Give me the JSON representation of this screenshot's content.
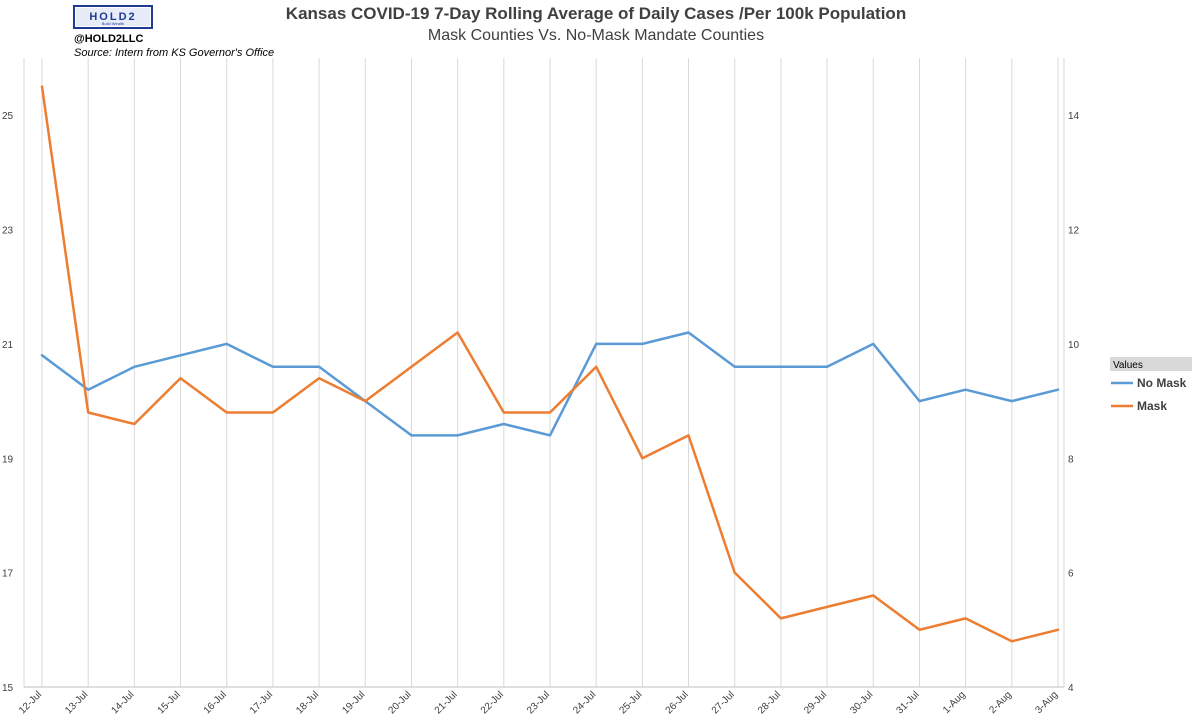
{
  "brand": {
    "logo_text": "HOLD2",
    "logo_subtext": "Build Wealth",
    "handle": "@HOLD2LLC",
    "source": "Source: Intern from KS Governor's Office"
  },
  "chart_data": {
    "type": "line",
    "title": "Kansas COVID-19 7-Day Rolling Average of Daily Cases /Per 100k Population",
    "subtitle": "Mask Counties Vs. No-Mask Mandate Counties",
    "categories": [
      "12-Jul",
      "13-Jul",
      "14-Jul",
      "15-Jul",
      "16-Jul",
      "17-Jul",
      "18-Jul",
      "19-Jul",
      "20-Jul",
      "21-Jul",
      "22-Jul",
      "23-Jul",
      "24-Jul",
      "25-Jul",
      "26-Jul",
      "27-Jul",
      "28-Jul",
      "29-Jul",
      "30-Jul",
      "31-Jul",
      "1-Aug",
      "2-Aug",
      "3-Aug"
    ],
    "y_left": {
      "min": 15,
      "max": 26,
      "ticks": [
        15,
        17,
        19,
        21,
        23,
        25
      ]
    },
    "y_right": {
      "min": 4,
      "max": 15,
      "ticks": [
        4,
        6,
        8,
        10,
        12,
        14
      ]
    },
    "grid": "vertical",
    "legend": {
      "title": "Values",
      "position": "right"
    },
    "series": [
      {
        "name": "No Mask",
        "axis": "left",
        "color": "#5B9BD5",
        "values": [
          20.8,
          20.2,
          20.6,
          20.8,
          21.0,
          20.6,
          20.6,
          20.0,
          19.4,
          19.4,
          19.6,
          19.4,
          21.0,
          21.0,
          21.2,
          20.6,
          20.6,
          20.6,
          21.0,
          20.0,
          20.2,
          20.0,
          20.2
        ]
      },
      {
        "name": "Mask",
        "axis": "right",
        "color": "#ED7D31",
        "values": [
          14.5,
          8.8,
          8.6,
          9.4,
          8.8,
          8.8,
          9.4,
          9.0,
          9.6,
          10.2,
          8.8,
          8.8,
          9.6,
          8.0,
          8.4,
          6.0,
          5.2,
          5.4,
          5.6,
          5.0,
          5.2,
          4.8,
          5.0
        ]
      }
    ]
  }
}
